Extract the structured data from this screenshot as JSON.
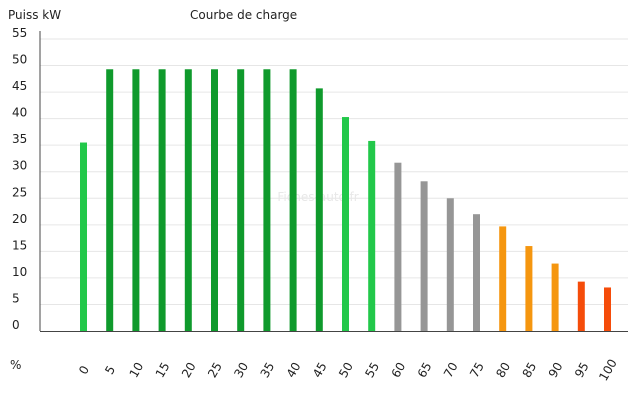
{
  "chart_data": {
    "type": "bar",
    "title": "Courbe de charge",
    "ylabel": "Puiss kW",
    "xlabel": "%",
    "watermark": "Fiches-auto.fr",
    "ylim": [
      0,
      55
    ],
    "yticks": [
      0,
      5,
      10,
      15,
      20,
      25,
      30,
      35,
      40,
      45,
      50,
      55
    ],
    "categories": [
      "0",
      "5",
      "10",
      "15",
      "20",
      "25",
      "30",
      "35",
      "40",
      "45",
      "50",
      "55",
      "60",
      "65",
      "70",
      "75",
      "80",
      "85",
      "90",
      "95",
      "100"
    ],
    "values": [
      35.5,
      49.3,
      49.3,
      49.3,
      49.3,
      49.3,
      49.3,
      49.3,
      49.3,
      45.7,
      40.3,
      35.8,
      31.7,
      28.2,
      25,
      22,
      19.7,
      16,
      12.7,
      9.3,
      8.2
    ],
    "bar_colors": [
      "#22c84a",
      "#0f9a2c",
      "#0f9a2c",
      "#0f9a2c",
      "#0f9a2c",
      "#0f9a2c",
      "#0f9a2c",
      "#0f9a2c",
      "#0f9a2c",
      "#0f9a2c",
      "#22c84a",
      "#22c84a",
      "#969696",
      "#969696",
      "#969696",
      "#969696",
      "#f5960f",
      "#f5960f",
      "#f5960f",
      "#f54c0a",
      "#f54c0a"
    ],
    "grid": true,
    "legend": "none"
  }
}
